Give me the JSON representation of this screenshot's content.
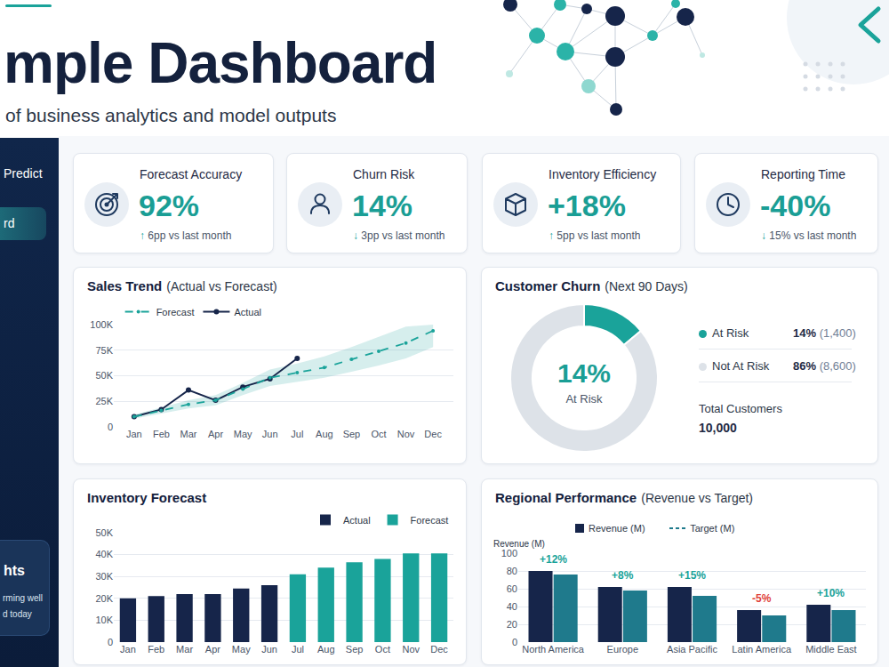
{
  "header": {
    "title": "mple Dashboard",
    "subtitle": "of business analytics and model outputs"
  },
  "sidebar": {
    "items": [
      "Predict",
      "rd"
    ],
    "card": {
      "title": "hts",
      "lines": [
        "rming well",
        "d today"
      ]
    }
  },
  "kpis": [
    {
      "title": "Forecast Accuracy",
      "value": "92%",
      "change": "↑ 6pp vs last month"
    },
    {
      "title": "Churn Risk",
      "value": "14%",
      "change": "↓ 3pp vs last month"
    },
    {
      "title": "Inventory Efficiency",
      "value": "+18%",
      "change": "↑ 5pp vs last month"
    },
    {
      "title": "Reporting Time",
      "value": "-40%",
      "change": "↓ 15% vs last month"
    }
  ],
  "chart_data": [
    {
      "type": "line",
      "title": "Sales Trend",
      "subtitle": "(Actual vs Forecast)",
      "categories": [
        "Jan",
        "Feb",
        "Mar",
        "Apr",
        "May",
        "Jun",
        "Jul",
        "Aug",
        "Sep",
        "Oct",
        "Nov",
        "Dec"
      ],
      "series": [
        {
          "name": "Actual",
          "color": "#16254a",
          "marker": "circle",
          "line_style": "solid",
          "values": [
            10000,
            17000,
            36000,
            26000,
            39000,
            47000,
            67000,
            null,
            null,
            null,
            null,
            null
          ]
        },
        {
          "name": "Forecast",
          "color": "#1aa39a",
          "marker": "circle",
          "line_style": "dashed",
          "values": [
            10000,
            16000,
            22000,
            26000,
            37000,
            48000,
            53000,
            58000,
            66000,
            74000,
            82000,
            94000
          ],
          "lower": [
            8000,
            13000,
            18000,
            21000,
            31000,
            40000,
            44000,
            48000,
            54000,
            60000,
            67000,
            78000
          ],
          "upper": [
            12000,
            19000,
            26000,
            31000,
            43000,
            56000,
            62000,
            69000,
            78000,
            88000,
            98000,
            100000
          ]
        }
      ],
      "ylim": [
        0,
        100000
      ],
      "yticks": [
        0,
        {
          "value": 25000,
          "label": "25K"
        },
        {
          "value": 50000,
          "label": "50K"
        },
        {
          "value": 75000,
          "label": "75K"
        },
        {
          "value": 100000,
          "label": "100K"
        }
      ],
      "grid": true,
      "legend": "top left"
    },
    {
      "type": "pie",
      "title": "Customer Churn",
      "subtitle": "(Next 90 Days)",
      "categories": [
        "At Risk",
        "Not At Risk"
      ],
      "values": [
        14,
        86
      ],
      "colors": [
        "#1aa39a",
        "#dde2e8"
      ],
      "legend_labels": [
        "14% (1,400)",
        "86% (8,600)"
      ],
      "center_value": "14%",
      "center_label": "At Risk",
      "total_label": "Total Customers",
      "total": "10,000",
      "legend": "right"
    },
    {
      "type": "bar",
      "title": "Inventory Forecast",
      "categories": [
        "Jan",
        "Feb",
        "Mar",
        "Apr",
        "May",
        "Jun",
        "Jul",
        "Aug",
        "Sep",
        "Oct",
        "Nov",
        "Dec"
      ],
      "series": [
        {
          "name": "Actual",
          "color": "#16254a",
          "values": [
            20000,
            21000,
            22000,
            22000,
            24500,
            26000,
            null,
            null,
            null,
            null,
            null,
            null
          ]
        },
        {
          "name": "Forecast",
          "color": "#1aa39a",
          "values": [
            null,
            null,
            null,
            null,
            null,
            null,
            31000,
            34000,
            36500,
            38000,
            40500,
            40500
          ]
        }
      ],
      "ylim": [
        0,
        50000
      ],
      "yticks": [
        0,
        {
          "value": 10000,
          "label": "10K"
        },
        {
          "value": 20000,
          "label": "20K"
        },
        {
          "value": 30000,
          "label": "30K"
        },
        {
          "value": 40000,
          "label": "40K"
        },
        {
          "value": 50000,
          "label": "50K"
        }
      ],
      "grid": true,
      "legend": "top right"
    },
    {
      "type": "bar",
      "title": "Regional Performance",
      "subtitle": "(Revenue vs Target)",
      "ylabel": "Revenue (M)",
      "categories": [
        "North America",
        "Europe",
        "Asia Pacific",
        "Latin America",
        "Middle East"
      ],
      "series": [
        {
          "name": "Revenue (M)",
          "color": "#16254a",
          "marker": "square",
          "values": [
            80,
            62,
            62,
            36,
            42
          ]
        },
        {
          "name": "Target (M)",
          "color": "#1f7a8c",
          "line_style": "dashed",
          "values": [
            76,
            58,
            52,
            30,
            36
          ]
        }
      ],
      "annotations": [
        "+12%",
        "+8%",
        "+15%",
        "-5%",
        "+10%"
      ],
      "ylim": [
        0,
        100
      ],
      "yticks": [
        0,
        20,
        40,
        60,
        80,
        100
      ],
      "grid": true,
      "legend": "top"
    }
  ]
}
